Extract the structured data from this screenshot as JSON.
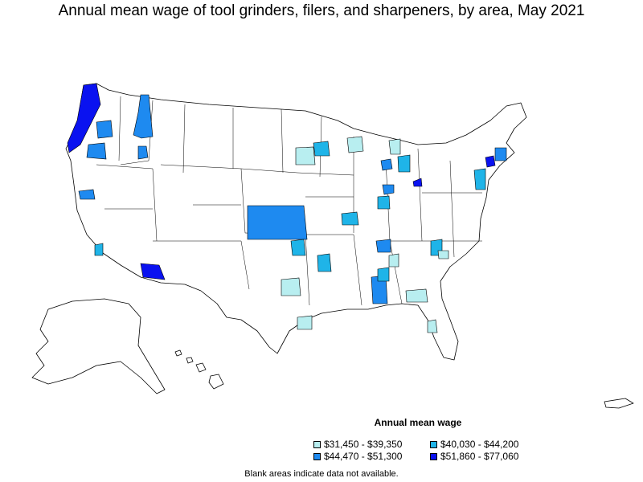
{
  "title": "Annual mean wage of tool grinders, filers, and sharpeners, by area, May 2021",
  "legend": {
    "title": "Annual mean wage",
    "items": [
      {
        "label": "$31,450 - $39,350",
        "color": "#b8eef0"
      },
      {
        "label": "$40,030 - $44,200",
        "color": "#1fb4e8"
      },
      {
        "label": "$44,470 - $51,300",
        "color": "#1e8af0"
      },
      {
        "label": "$51,860 - $77,060",
        "color": "#0a12f0"
      }
    ]
  },
  "footnote": "Blank areas indicate data not available."
}
